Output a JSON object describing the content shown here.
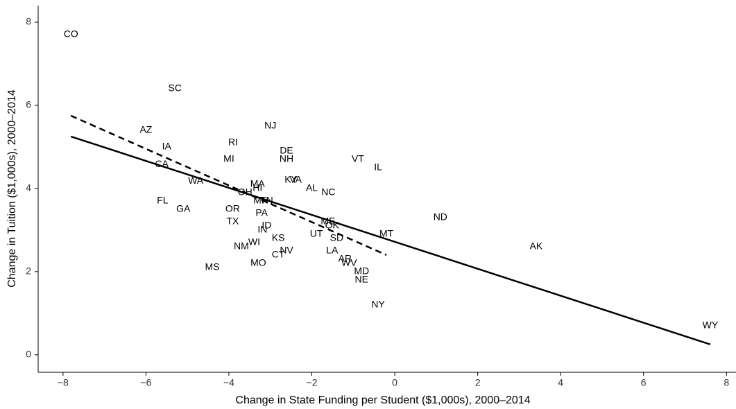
{
  "chart_data": {
    "type": "scatter",
    "x_label": "Change in State Funding per Student ($1,000s), 2000–2014",
    "y_label": "Change in Tuition ($1,000s), 2000–2014",
    "series": [
      {
        "labels": [
          "CO",
          "SC",
          "AZ",
          "IA",
          "CA",
          "WA",
          "FL",
          "GA",
          "RI",
          "MI",
          "NJ",
          "DE",
          "NH",
          "VT",
          "IL",
          "KY",
          "VA",
          "AL",
          "NC",
          "MA",
          "HI",
          "OH",
          "MN",
          "TN",
          "OR",
          "TX",
          "PA",
          "IN",
          "ID",
          "KS",
          "NM",
          "WI",
          "MO",
          "CT",
          "NV",
          "MS",
          "UT",
          "ME",
          "OK",
          "SD",
          "LA",
          "AR",
          "WV",
          "MD",
          "NE",
          "NY",
          "MT",
          "ND",
          "AK",
          "WY"
        ],
        "x": [
          -7.81,
          -5.3,
          -6.0,
          -5.5,
          -5.62,
          -4.8,
          -5.6,
          -5.1,
          -3.9,
          -4.0,
          -3.0,
          -2.61,
          -2.61,
          -0.89,
          -0.4,
          -2.5,
          -2.39,
          -2.0,
          -1.6,
          -3.31,
          -3.31,
          -3.61,
          -3.23,
          -3.09,
          -3.91,
          -3.91,
          -3.21,
          -3.19,
          -3.09,
          -2.81,
          -3.7,
          -3.39,
          -3.29,
          -2.81,
          -2.61,
          -4.4,
          -1.89,
          -1.61,
          -1.51,
          -1.4,
          -1.51,
          -1.2,
          -1.1,
          -0.8,
          -0.8,
          -0.4,
          -0.2,
          1.1,
          3.41,
          7.61
        ],
        "values": [
          7.7,
          6.4,
          5.4,
          5.0,
          4.58,
          4.18,
          3.7,
          3.5,
          5.1,
          4.7,
          5.5,
          4.9,
          4.7,
          4.7,
          4.5,
          4.2,
          4.2,
          4.0,
          3.9,
          4.1,
          4.0,
          3.9,
          3.7,
          3.7,
          3.5,
          3.2,
          3.4,
          3.0,
          3.1,
          2.8,
          2.6,
          2.7,
          2.2,
          2.4,
          2.5,
          2.1,
          2.9,
          3.2,
          3.1,
          2.8,
          2.5,
          2.3,
          2.2,
          2.0,
          1.8,
          1.2,
          2.9,
          3.3,
          2.6,
          0.7
        ],
        "color": "#000000"
      }
    ],
    "fit_lines": [
      {
        "x": [
          -7.81,
          7.61
        ],
        "values": [
          5.25,
          0.25
        ],
        "style": "solid"
      },
      {
        "x": [
          -7.81,
          -0.2
        ],
        "values": [
          5.75,
          2.4
        ],
        "style": "dashed"
      }
    ],
    "xlim": [
      -8.6,
      8.23
    ],
    "xticks": [
      {
        "value": -8,
        "label": "−8"
      },
      {
        "value": -6,
        "label": "−6"
      },
      {
        "value": -4,
        "label": "−4"
      },
      {
        "value": -2,
        "label": "−2"
      },
      0,
      2,
      4,
      6,
      8
    ],
    "ylim": [
      -0.42,
      8.4
    ],
    "yticks": [
      0,
      2,
      4,
      6,
      8
    ]
  }
}
